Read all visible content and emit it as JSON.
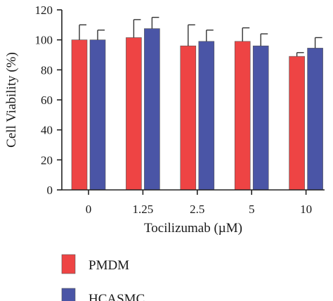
{
  "chart_data": {
    "type": "bar",
    "title": "",
    "xlabel": "Tocilizumab (µM)",
    "ylabel": "Cell Viability (%)",
    "categories": [
      "0",
      "1.25",
      "2.5",
      "5",
      "10"
    ],
    "ylim": [
      0,
      120
    ],
    "yticks": [
      0,
      20,
      40,
      60,
      80,
      100,
      120
    ],
    "grid": false,
    "legend_position": "bottom-left",
    "series": [
      {
        "name": "PMDM",
        "color": "#ee4444",
        "values": [
          100,
          101.5,
          96,
          99,
          89
        ],
        "errors": [
          10,
          12,
          14,
          9,
          2.5
        ]
      },
      {
        "name": "HCASMC",
        "color": "#4a55a6",
        "values": [
          100,
          107.5,
          99,
          96,
          94.5
        ],
        "errors": [
          6.5,
          7.5,
          7.5,
          8,
          7
        ]
      }
    ]
  }
}
